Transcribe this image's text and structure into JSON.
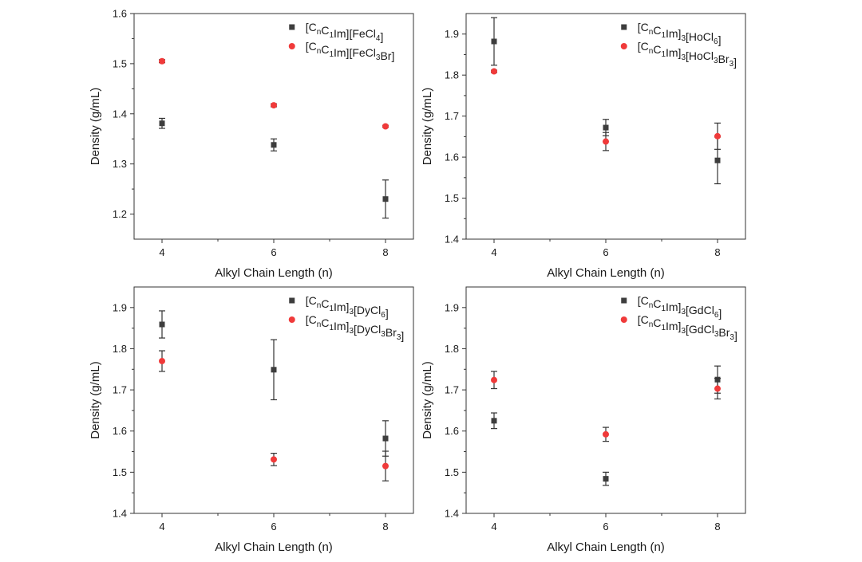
{
  "colors": {
    "series_a": "#3d3d3d",
    "series_b": "#f03a3a"
  },
  "chart_data": [
    {
      "type": "scatter",
      "xlabel": "Alkyl Chain Length (n)",
      "ylabel": "Density (g/mL)",
      "xlim": [
        3.5,
        8.5
      ],
      "ylim": [
        1.15,
        1.6
      ],
      "xticks": [
        4,
        6,
        8
      ],
      "yticks": [
        1.2,
        1.3,
        1.4,
        1.5,
        1.6
      ],
      "yticklabels": [
        "1.2",
        "1.3",
        "1.4",
        "1.5",
        "1.6"
      ],
      "legend_position": "top-right",
      "series": [
        {
          "name": "[C_nC_1Im][FeCl_4]",
          "marker": "square",
          "x": [
            4,
            6,
            8
          ],
          "y": [
            1.381,
            1.338,
            1.23
          ],
          "err": [
            0.01,
            0.012,
            0.038
          ]
        },
        {
          "name": "[C_nC_1Im][FeCl_3Br]",
          "marker": "circle",
          "x": [
            4,
            6,
            8
          ],
          "y": [
            1.505,
            1.417,
            1.375
          ],
          "err": [
            0.003,
            0.003,
            0.002
          ]
        }
      ]
    },
    {
      "type": "scatter",
      "xlabel": "Alkyl Chain Length (n)",
      "ylabel": "Density (g/mL)",
      "xlim": [
        3.5,
        8.5
      ],
      "ylim": [
        1.4,
        1.95
      ],
      "xticks": [
        4,
        6,
        8
      ],
      "yticks": [
        1.4,
        1.5,
        1.6,
        1.7,
        1.8,
        1.9
      ],
      "yticklabels": [
        "1.4",
        "1.5",
        "1.6",
        "1.7",
        "1.8",
        "1.9"
      ],
      "legend_position": "top-right",
      "series": [
        {
          "name": "[C_nC_1Im]_3[HoCl_6]",
          "marker": "square",
          "x": [
            4,
            6,
            8
          ],
          "y": [
            1.882,
            1.672,
            1.592
          ],
          "err": [
            0.058,
            0.02,
            0.057
          ]
        },
        {
          "name": "[C_nC_1Im]_3[HoCl_3Br_3]",
          "marker": "circle",
          "x": [
            4,
            6,
            8
          ],
          "y": [
            1.809,
            1.638,
            1.651
          ],
          "err": [
            0.003,
            0.022,
            0.032
          ]
        }
      ]
    },
    {
      "type": "scatter",
      "xlabel": "Alkyl Chain Length (n)",
      "ylabel": "Density (g/mL)",
      "xlim": [
        3.5,
        8.5
      ],
      "ylim": [
        1.4,
        1.95
      ],
      "xticks": [
        4,
        6,
        8
      ],
      "yticks": [
        1.4,
        1.5,
        1.6,
        1.7,
        1.8,
        1.9
      ],
      "yticklabels": [
        "1.4",
        "1.5",
        "1.6",
        "1.7",
        "1.8",
        "1.9"
      ],
      "legend_position": "top-right",
      "series": [
        {
          "name": "[C_nC_1Im]_3[DyCl_6]",
          "marker": "square",
          "x": [
            4,
            6,
            8
          ],
          "y": [
            1.859,
            1.749,
            1.582
          ],
          "err": [
            0.033,
            0.073,
            0.043
          ]
        },
        {
          "name": "[C_nC_1Im]_3[DyCl_3Br_3]",
          "marker": "circle",
          "x": [
            4,
            6,
            8
          ],
          "y": [
            1.77,
            1.531,
            1.515
          ],
          "err": [
            0.025,
            0.015,
            0.036
          ]
        }
      ]
    },
    {
      "type": "scatter",
      "xlabel": "Alkyl Chain Length (n)",
      "ylabel": "Density (g/mL)",
      "xlim": [
        3.5,
        8.5
      ],
      "ylim": [
        1.4,
        1.95
      ],
      "xticks": [
        4,
        6,
        8
      ],
      "yticks": [
        1.4,
        1.5,
        1.6,
        1.7,
        1.8,
        1.9
      ],
      "yticklabels": [
        "1.4",
        "1.5",
        "1.6",
        "1.7",
        "1.8",
        "1.9"
      ],
      "legend_position": "top-right",
      "series": [
        {
          "name": "[C_nC_1Im]_3[GdCl_6]",
          "marker": "square",
          "x": [
            4,
            6,
            8
          ],
          "y": [
            1.625,
            1.484,
            1.725
          ],
          "err": [
            0.019,
            0.016,
            0.033
          ]
        },
        {
          "name": "[C_nC_1Im]_3[GdCl_3Br_3]",
          "marker": "circle",
          "x": [
            4,
            6,
            8
          ],
          "y": [
            1.724,
            1.592,
            1.703
          ],
          "err": [
            0.021,
            0.017,
            0.025
          ]
        }
      ]
    }
  ]
}
